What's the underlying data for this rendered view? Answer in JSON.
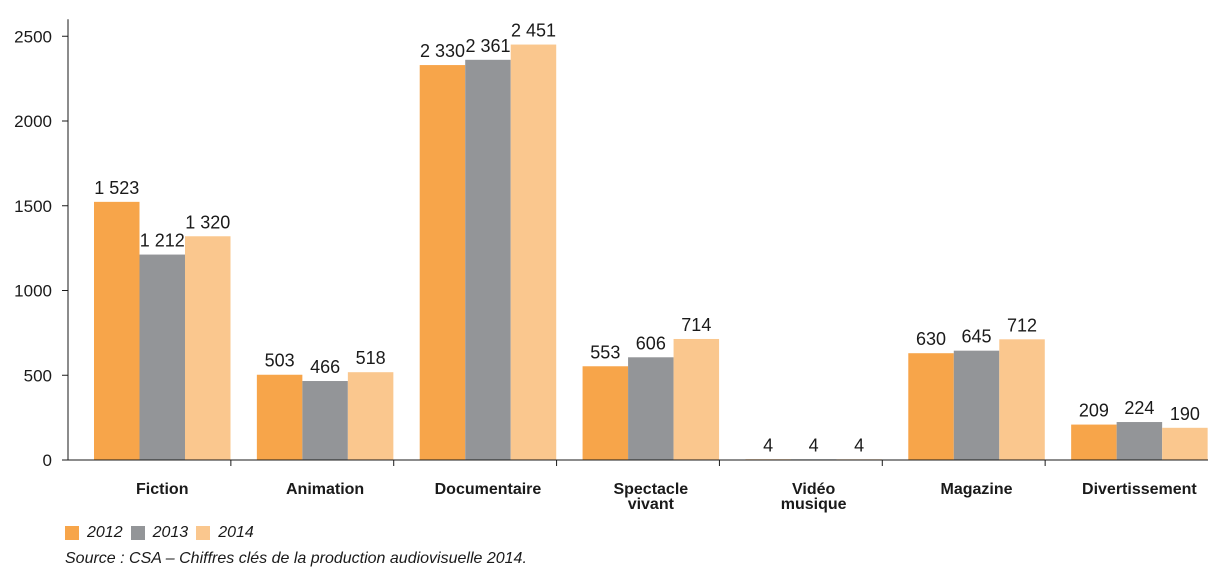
{
  "chart_data": {
    "type": "bar",
    "title": "",
    "xlabel": "",
    "ylabel": "",
    "ylim": [
      0,
      2600
    ],
    "yticks": [
      "0",
      "500",
      "1000",
      "1500",
      "2000",
      "2500"
    ],
    "ytick_values": [
      0,
      500,
      1000,
      1500,
      2000,
      2500
    ],
    "grid": false,
    "legend_position": "bottom-left",
    "categories": [
      [
        "Fiction"
      ],
      [
        "Animation"
      ],
      [
        "Documentaire"
      ],
      [
        "Spectacle",
        "vivant"
      ],
      [
        "Vidéo",
        "musique"
      ],
      [
        "Magazine"
      ],
      [
        "Divertissement"
      ]
    ],
    "series": [
      {
        "name": "2012",
        "color": "#f7a54a",
        "values": [
          1523,
          503,
          2330,
          553,
          4,
          630,
          209
        ],
        "labels": [
          "1 523",
          "503",
          "2 330",
          "553",
          "4",
          "630",
          "209"
        ]
      },
      {
        "name": "2013",
        "color": "#939598",
        "values": [
          1212,
          466,
          2361,
          606,
          4,
          645,
          224
        ],
        "labels": [
          "1 212",
          "466",
          "2 361",
          "606",
          "4",
          "645",
          "224"
        ]
      },
      {
        "name": "2014",
        "color": "#fac78e",
        "values": [
          1320,
          518,
          2451,
          714,
          4,
          712,
          190
        ],
        "labels": [
          "1 320",
          "518",
          "2 451",
          "714",
          "4",
          "712",
          "190"
        ]
      }
    ]
  },
  "source": "Source : CSA – Chiffres clés de la production audiovisuelle 2014."
}
